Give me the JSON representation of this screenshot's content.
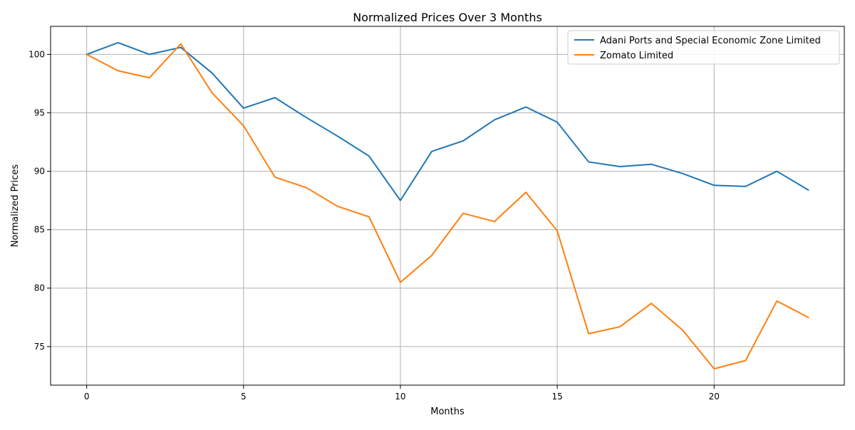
{
  "chart_data": {
    "type": "line",
    "title": "Normalized Prices Over 3 Months",
    "xlabel": "Months",
    "ylabel": "Normalized Prices",
    "xlim": [
      -1.15,
      24.15
    ],
    "ylim": [
      71.7,
      102.4
    ],
    "x_ticks": [
      0,
      5,
      10,
      15,
      20
    ],
    "y_ticks": [
      75,
      80,
      85,
      90,
      95,
      100
    ],
    "grid": true,
    "legend_position": "top-right",
    "x": [
      0,
      1,
      2,
      3,
      4,
      5,
      6,
      7,
      8,
      9,
      10,
      11,
      12,
      13,
      14,
      15,
      16,
      17,
      18,
      19,
      20,
      21,
      22,
      23
    ],
    "series": [
      {
        "name": "Adani Ports and Special Economic Zone Limited",
        "color": "#1f77b4",
        "values": [
          100,
          101.0,
          100.0,
          100.6,
          98.4,
          95.4,
          96.3,
          94.6,
          93.0,
          91.3,
          87.5,
          91.7,
          92.6,
          94.4,
          95.5,
          94.2,
          90.8,
          90.4,
          90.6,
          89.8,
          88.8,
          88.7,
          90.0,
          88.4
        ]
      },
      {
        "name": "Zomato Limited",
        "color": "#ff7f0e",
        "values": [
          100,
          98.6,
          98.0,
          100.9,
          96.7,
          93.9,
          89.5,
          88.6,
          87.0,
          86.1,
          80.5,
          82.8,
          86.4,
          85.7,
          88.2,
          84.9,
          76.1,
          76.7,
          78.7,
          76.4,
          73.1,
          73.8,
          78.9,
          77.5
        ]
      }
    ]
  }
}
